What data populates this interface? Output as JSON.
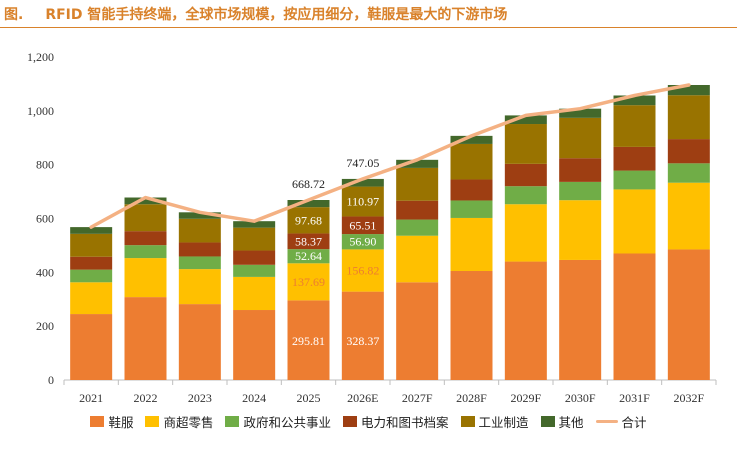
{
  "figure": {
    "label": "图.",
    "title": "RFID 智能手持终端，全球市场规模，按应用细分，鞋服是最大的下游市场"
  },
  "colors": {
    "title": "#d9822b",
    "axis": "#bfbfbf",
    "series": [
      "#ed7d31",
      "#ffc000",
      "#70ad47",
      "#9e3e12",
      "#997300",
      "#43682b"
    ],
    "line": "#f4b183"
  },
  "chart_data": {
    "type": "bar",
    "stacked": true,
    "categories": [
      "2021",
      "2022",
      "2023",
      "2024",
      "2025",
      "2026E",
      "2027F",
      "2028F",
      "2029F",
      "2030F",
      "2031F",
      "2032F"
    ],
    "ylim": [
      0,
      1200
    ],
    "yticks": [
      0,
      200,
      400,
      600,
      800,
      1000,
      1200
    ],
    "ytick_labels": [
      "0",
      "200",
      "400",
      "600",
      "800",
      "1,000",
      "1,200"
    ],
    "series": [
      {
        "name": "鞋服",
        "values": [
          245,
          308,
          282,
          260,
          295.81,
          328.37,
          363,
          405,
          440,
          446,
          470,
          485
        ]
      },
      {
        "name": "商超零售",
        "values": [
          118,
          145,
          130,
          123,
          137.69,
          156.82,
          173,
          197,
          213,
          222,
          238,
          248
        ]
      },
      {
        "name": "政府和公共事业",
        "values": [
          47,
          48,
          47,
          45,
          52.64,
          56.9,
          60,
          65,
          67,
          68,
          70,
          72
        ]
      },
      {
        "name": "电力和图书档案",
        "values": [
          48,
          52,
          52,
          53,
          58.37,
          65.51,
          70,
          78,
          83,
          88,
          88,
          90
        ]
      },
      {
        "name": "工业制造",
        "values": [
          85,
          100,
          88,
          85,
          97.68,
          110.97,
          122,
          132,
          148,
          150,
          155,
          163
        ]
      },
      {
        "name": "其他",
        "values": [
          25,
          25,
          24,
          24,
          26.53,
          28.48,
          30,
          30,
          32,
          34,
          36,
          38
        ]
      }
    ],
    "total_line": {
      "name": "合计",
      "values": [
        568,
        678,
        623,
        590,
        668.72,
        747.05,
        818,
        907,
        983,
        1008,
        1057,
        1096
      ]
    },
    "data_labels": {
      "2025": [
        "295.81",
        "137.69",
        "52.64",
        "58.37",
        "97.68"
      ],
      "2026E": [
        "328.37",
        "156.82",
        "56.90",
        "65.51",
        "110.97"
      ]
    },
    "total_labels": {
      "2025": "668.72",
      "2026E": "747.05"
    },
    "legend_position": "bottom"
  }
}
